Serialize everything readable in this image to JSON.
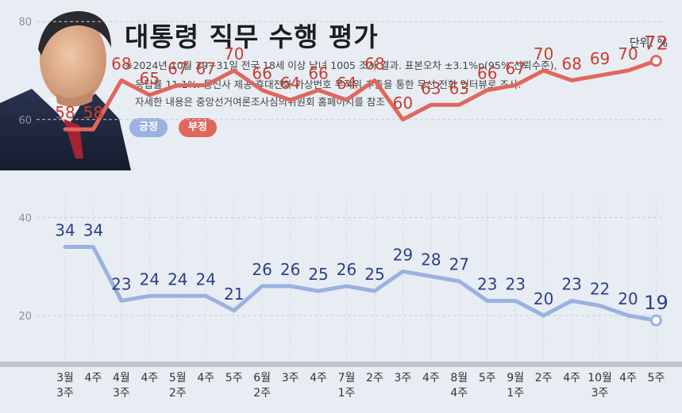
{
  "header": {
    "title": "대통령 직무 수행 평가",
    "unit": "단위: %",
    "notes": [
      "※2024년 10월 29~31일 전국 18세 이상 남녀 1005 조사 결과. 표본오차 ±3.1%p(95% 신뢰수준),",
      "응답률 11.1%. 통신사 제공 휴대전화 가상번호 무작위 추출을 통한 무선 전화 인터뷰로 조사.",
      "자세한 내용은 중앙선거여론조사심의위원회 홈페이지를 참조"
    ]
  },
  "colors": {
    "positive": "#9bb1e2",
    "negative": "#e0675c",
    "positive_label": "#2c3f86",
    "negative_label": "#c73d30",
    "background": "#e8edf3"
  },
  "chart_data": {
    "type": "line",
    "categories": [
      [
        "3월",
        "3주"
      ],
      [
        "4주"
      ],
      [
        "4월",
        "3주"
      ],
      [
        "4주"
      ],
      [
        "5월",
        "2주"
      ],
      [
        "4주"
      ],
      [
        "5주"
      ],
      [
        "6월",
        "2주"
      ],
      [
        "3주"
      ],
      [
        "4주"
      ],
      [
        "7월",
        "1주"
      ],
      [
        "2주"
      ],
      [
        "3주"
      ],
      [
        "4주"
      ],
      [
        "8월",
        "4주"
      ],
      [
        "5주"
      ],
      [
        "9월",
        "1주"
      ],
      [
        "2주"
      ],
      [
        "4주"
      ],
      [
        "10월",
        "3주"
      ],
      [
        "4주"
      ],
      [
        "5주"
      ]
    ],
    "series": [
      {
        "name": "긍정",
        "values": [
          34,
          34,
          23,
          24,
          24,
          24,
          21,
          26,
          26,
          25,
          26,
          25,
          29,
          28,
          27,
          23,
          23,
          20,
          23,
          22,
          20,
          19
        ]
      },
      {
        "name": "부정",
        "values": [
          58,
          58,
          68,
          65,
          67,
          67,
          70,
          66,
          64,
          66,
          64,
          68,
          60,
          63,
          63,
          66,
          67,
          70,
          68,
          69,
          70,
          72
        ]
      }
    ],
    "yticks": [
      20,
      40,
      60,
      80
    ],
    "ylim": [
      10,
      85
    ],
    "grid": true,
    "legend": "top-left"
  }
}
